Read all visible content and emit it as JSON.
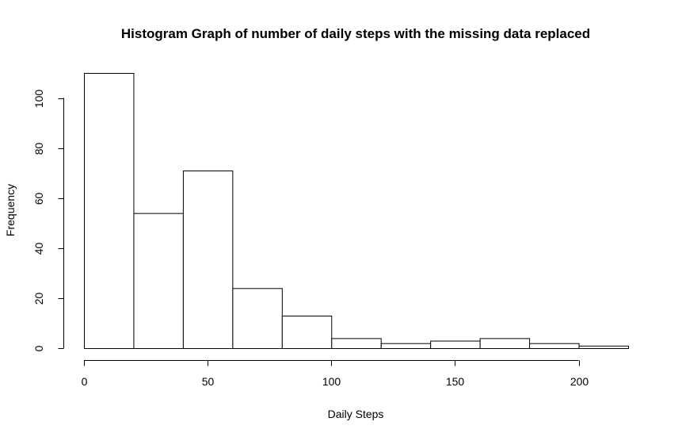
{
  "chart_data": {
    "type": "bar",
    "title": "Histogram Graph of number of daily steps with the missing data replaced",
    "xlabel": "Daily Steps",
    "ylabel": "Frequency",
    "bins": [
      {
        "from": 0,
        "to": 20,
        "count": 110
      },
      {
        "from": 20,
        "to": 40,
        "count": 54
      },
      {
        "from": 40,
        "to": 60,
        "count": 71
      },
      {
        "from": 60,
        "to": 80,
        "count": 24
      },
      {
        "from": 80,
        "to": 100,
        "count": 13
      },
      {
        "from": 100,
        "to": 120,
        "count": 4
      },
      {
        "from": 120,
        "to": 140,
        "count": 2
      },
      {
        "from": 140,
        "to": 160,
        "count": 3
      },
      {
        "from": 160,
        "to": 180,
        "count": 4
      },
      {
        "from": 180,
        "to": 200,
        "count": 2
      },
      {
        "from": 200,
        "to": 220,
        "count": 1
      }
    ],
    "xlim": [
      0,
      220
    ],
    "ylim": [
      0,
      110
    ],
    "x_ticks": [
      0,
      50,
      100,
      150,
      200
    ],
    "y_ticks": [
      0,
      20,
      40,
      60,
      80,
      100
    ],
    "grid": false,
    "bar_fill": "#ffffff",
    "bar_stroke": "#000000"
  }
}
